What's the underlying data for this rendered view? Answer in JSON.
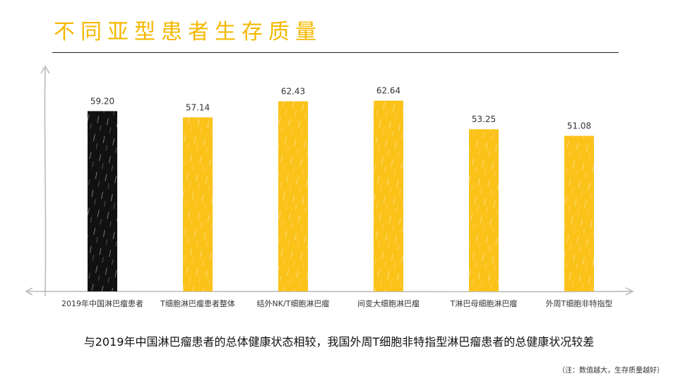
{
  "title": "不同亚型患者生存质量",
  "chart_data": {
    "type": "bar",
    "categories": [
      "2019年中国淋巴瘤患者",
      "T细胞淋巴瘤患者整体",
      "结外NK/T细胞淋巴瘤",
      "间变大细胞淋巴瘤",
      "T淋巴母细胞淋巴瘤",
      "外周T细胞非特指型"
    ],
    "values": [
      59.2,
      57.14,
      62.43,
      62.64,
      53.25,
      51.08
    ],
    "value_labels": [
      "59.20",
      "57.14",
      "62.43",
      "62.64",
      "53.25",
      "51.08"
    ],
    "bar_colors": [
      "#111111",
      "#FBC21A",
      "#FBC21A",
      "#FBC21A",
      "#FBC21A",
      "#FBC21A"
    ],
    "ylim": [
      0,
      76
    ],
    "grid": false
  },
  "conclusion": "与2019年中国淋巴瘤患者的总体健康状态相较，我国外周T细胞非特指型淋巴瘤患者的总健康状况较差",
  "note": "（注：数值越大，生存质量越好）",
  "colors": {
    "accent": "#F5B800",
    "bar": "#FBC21A",
    "baseline_bar": "#111111",
    "axis": "#BBBBBB"
  }
}
